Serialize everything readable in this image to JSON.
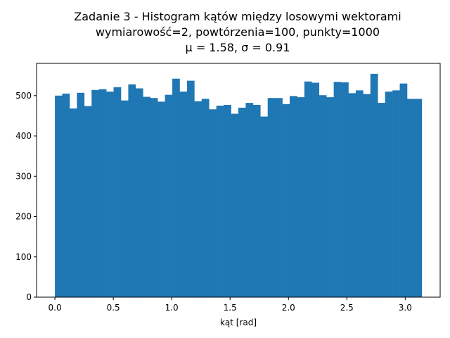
{
  "chart_data": {
    "type": "bar",
    "title_lines": [
      "Zadanie 3 - Histogram kątów między losowymi wektorami",
      "wymiarowość=2, powtórzenia=100, punkty=1000",
      "μ = 1.58, σ = 0.91"
    ],
    "xlabel": "kąt [rad]",
    "ylabel": "",
    "xlim": [
      -0.157,
      3.299
    ],
    "ylim": [
      0,
      580
    ],
    "x_ticks": [
      0.0,
      0.5,
      1.0,
      1.5,
      2.0,
      2.5,
      3.0
    ],
    "x_tick_labels": [
      "0.0",
      "0.5",
      "1.0",
      "1.5",
      "2.0",
      "2.5",
      "3.0"
    ],
    "y_ticks": [
      0,
      100,
      200,
      300,
      400,
      500
    ],
    "y_tick_labels": [
      "0",
      "100",
      "200",
      "300",
      "400",
      "500"
    ],
    "bin_range": [
      0.0,
      3.1416
    ],
    "bin_count": 50,
    "values": [
      500,
      505,
      468,
      507,
      474,
      514,
      516,
      510,
      521,
      488,
      528,
      518,
      497,
      494,
      485,
      502,
      542,
      510,
      537,
      486,
      492,
      466,
      475,
      477,
      455,
      470,
      482,
      477,
      448,
      494,
      494,
      479,
      499,
      496,
      535,
      532,
      501,
      496,
      534,
      533,
      506,
      513,
      504,
      554,
      482,
      510,
      513,
      530,
      492,
      492
    ],
    "bar_color": "#1f77b4",
    "grid": false,
    "legend": "none"
  }
}
